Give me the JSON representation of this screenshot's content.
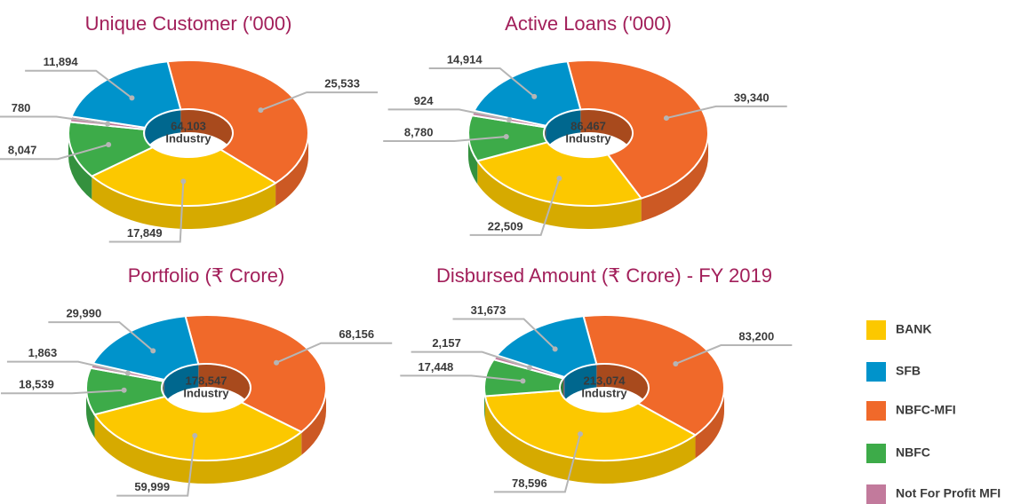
{
  "chart_data": [
    {
      "type": "pie",
      "title": "Unique Customer ('000)",
      "values": [
        17849,
        11894,
        25533,
        8047,
        780
      ],
      "value_labels": [
        "17,849",
        "11,894",
        "25,533",
        "8,047",
        "780"
      ],
      "total": 64103,
      "total_label": "64,103",
      "center_label": "Industry"
    },
    {
      "type": "pie",
      "title": "Active Loans ('000)",
      "values": [
        22509,
        14914,
        39340,
        8780,
        924
      ],
      "value_labels": [
        "22,509",
        "14,914",
        "39,340",
        "8,780",
        "924"
      ],
      "total": 86467,
      "total_label": "86,467",
      "center_label": "Industry"
    },
    {
      "type": "pie",
      "title": "Portfolio (₹ Crore)",
      "values": [
        59999,
        29990,
        68156,
        18539,
        1863
      ],
      "value_labels": [
        "59,999",
        "29,990",
        "68,156",
        "18,539",
        "1,863"
      ],
      "total": 178547,
      "total_label": "178,547",
      "center_label": "Industry"
    },
    {
      "type": "pie",
      "title": "Disbursed Amount (₹ Crore) - FY 2019",
      "values": [
        78596,
        31673,
        83200,
        17448,
        2157
      ],
      "value_labels": [
        "78,596",
        "31,673",
        "83,200",
        "17,448",
        "2,157"
      ],
      "total": 213074,
      "total_label": "213,074",
      "center_label": "Industry"
    }
  ],
  "legend": {
    "categories": [
      "BANK",
      "SFB",
      "NBFC-MFI",
      "NBFC",
      "Not For Profit MFI"
    ],
    "colors": [
      "#fcc800",
      "#0093cb",
      "#f0692a",
      "#3dab49",
      "#c27a9c"
    ]
  }
}
